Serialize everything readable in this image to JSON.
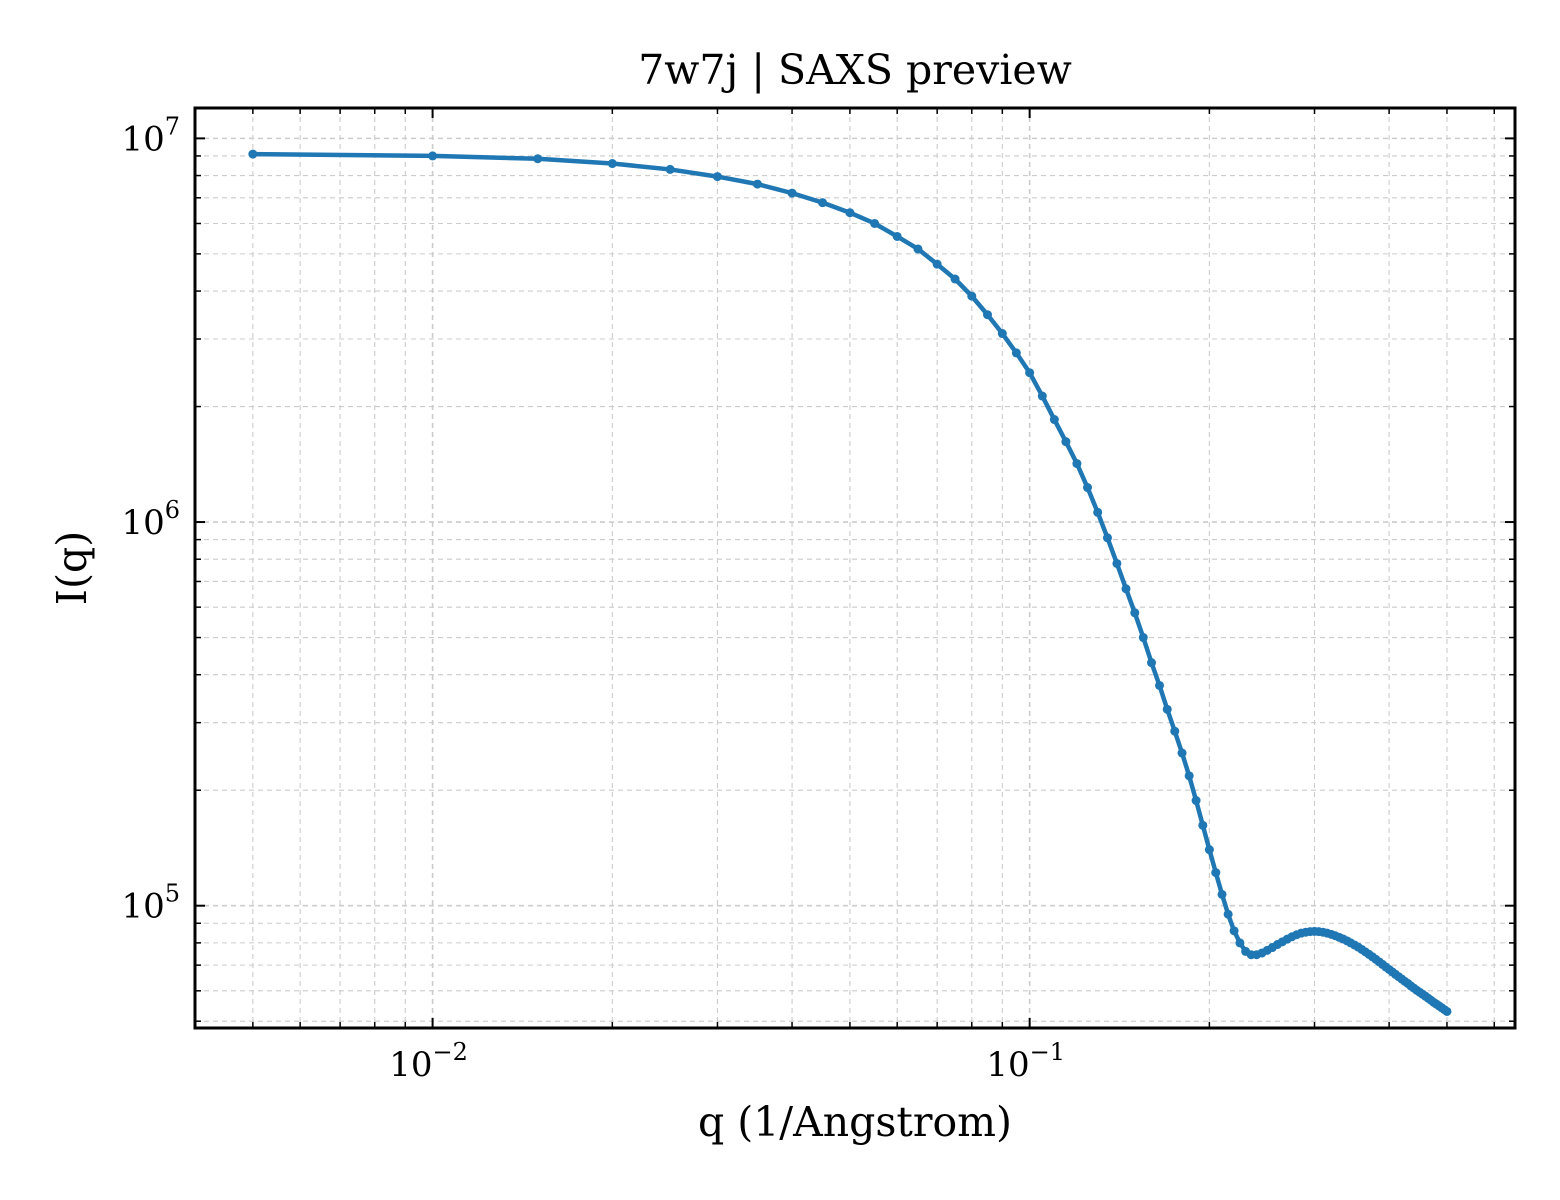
{
  "chart_data": {
    "type": "line",
    "title": "7w7j | SAXS preview",
    "xlabel": "q (1/Angstrom)",
    "ylabel": "I(q)",
    "x_scale": "log",
    "y_scale": "log",
    "xlim": [
      0.004,
      0.65
    ],
    "ylim": [
      48000,
      12000000
    ],
    "grid": true,
    "x_ticks": [
      {
        "value": 0.01,
        "base": "10",
        "exp": "−2"
      },
      {
        "value": 0.1,
        "base": "10",
        "exp": "−1"
      }
    ],
    "y_ticks": [
      {
        "value": 100000,
        "base": "10",
        "exp": "5"
      },
      {
        "value": 1000000,
        "base": "10",
        "exp": "6"
      },
      {
        "value": 10000000,
        "base": "10",
        "exp": "7"
      }
    ],
    "series": [
      {
        "color": "#1f77b4",
        "x": [
          0.005,
          0.01,
          0.015,
          0.02,
          0.025,
          0.03,
          0.035,
          0.04,
          0.045,
          0.05,
          0.055,
          0.06,
          0.065,
          0.07,
          0.075,
          0.08,
          0.085,
          0.09,
          0.095,
          0.1,
          0.105,
          0.11,
          0.115,
          0.12,
          0.125,
          0.13,
          0.135,
          0.14,
          0.145,
          0.15,
          0.155,
          0.16,
          0.165,
          0.17,
          0.175,
          0.18,
          0.185,
          0.19,
          0.195,
          0.2,
          0.205,
          0.21,
          0.215,
          0.22,
          0.225,
          0.23,
          0.235,
          0.24,
          0.245,
          0.25,
          0.255,
          0.26,
          0.265,
          0.27,
          0.275,
          0.28,
          0.285,
          0.29,
          0.295,
          0.3,
          0.305,
          0.31,
          0.315,
          0.32,
          0.325,
          0.33,
          0.335,
          0.34,
          0.345,
          0.35,
          0.355,
          0.36,
          0.365,
          0.37,
          0.375,
          0.38,
          0.385,
          0.39,
          0.395,
          0.4,
          0.405,
          0.41,
          0.415,
          0.42,
          0.425,
          0.43,
          0.435,
          0.44,
          0.445,
          0.45,
          0.455,
          0.46,
          0.465,
          0.47,
          0.475,
          0.48,
          0.485,
          0.49,
          0.495,
          0.5
        ],
        "y": [
          9100000,
          9000000,
          8850000,
          8600000,
          8300000,
          7950000,
          7600000,
          7200000,
          6800000,
          6400000,
          6000000,
          5550000,
          5150000,
          4700000,
          4300000,
          3880000,
          3470000,
          3100000,
          2760000,
          2450000,
          2130000,
          1850000,
          1620000,
          1420000,
          1230000,
          1060000,
          910000,
          780000,
          670000,
          580000,
          500000,
          430000,
          375000,
          325000,
          285000,
          250000,
          218000,
          188000,
          162000,
          140000,
          122000,
          107000,
          95000,
          86000,
          80000,
          76000,
          74500,
          74500,
          75300,
          76500,
          77800,
          79200,
          80500,
          81800,
          83000,
          84000,
          84800,
          85300,
          85600,
          85700,
          85600,
          85300,
          84800,
          84200,
          83500,
          82700,
          81900,
          81000,
          80000,
          79000,
          78000,
          76900,
          75800,
          74700,
          73600,
          72500,
          71400,
          70300,
          69200,
          68200,
          67200,
          66200,
          65300,
          64400,
          63500,
          62700,
          61800,
          61000,
          60200,
          59500,
          58800,
          58100,
          57400,
          56700,
          56000,
          55400,
          54800,
          54200,
          53600,
          53000
        ]
      }
    ]
  }
}
